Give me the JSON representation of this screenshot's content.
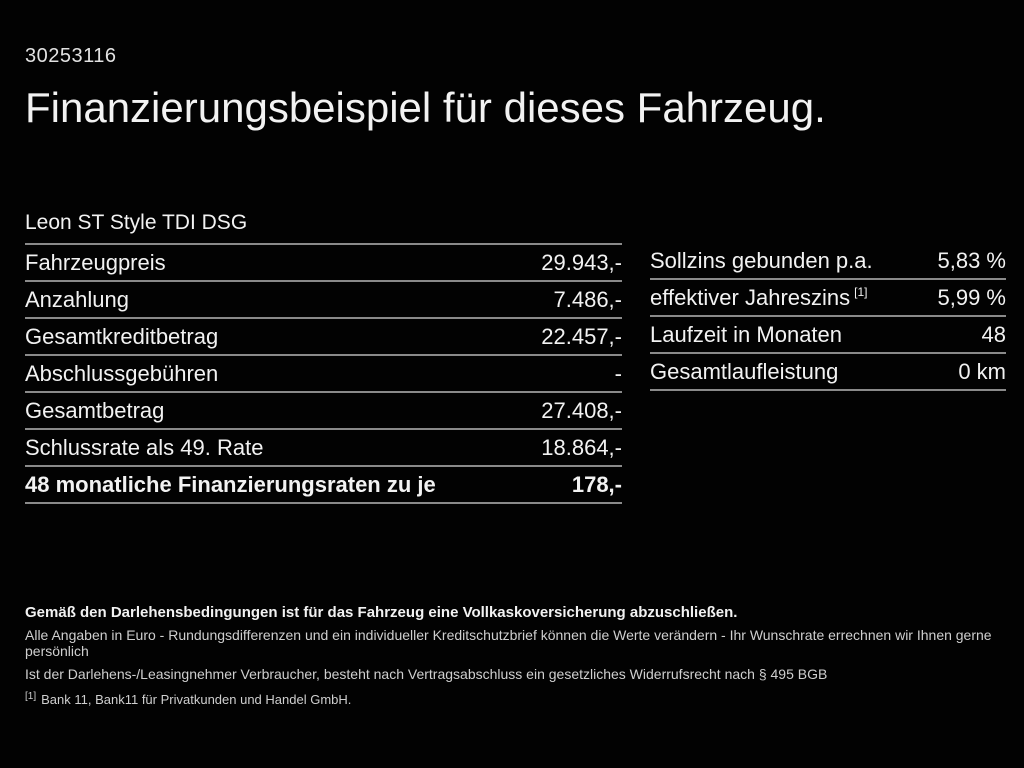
{
  "page": {
    "id_number": "30253116",
    "title": "Finanzierungsbeispiel für dieses Fahrzeug.",
    "vehicle_name": "Leon ST Style TDI DSG"
  },
  "finance_table": {
    "rows": [
      {
        "label": "Fahrzeugpreis",
        "value": "29.943,-",
        "bold": false
      },
      {
        "label": "Anzahlung",
        "value": "7.486,-",
        "bold": false
      },
      {
        "label": "Gesamtkreditbetrag",
        "value": "22.457,-",
        "bold": false
      },
      {
        "label": "Abschlussgebühren",
        "value": "-",
        "bold": false
      },
      {
        "label": "Gesamtbetrag",
        "value": "27.408,-",
        "bold": false
      },
      {
        "label": "Schlussrate als 49. Rate",
        "value": "18.864,-",
        "bold": false
      },
      {
        "label": "48 monatliche Finanzierungsraten zu je",
        "value": "178,-",
        "bold": true
      }
    ]
  },
  "conditions_table": {
    "rows": [
      {
        "label": "Sollzins gebunden p.a.",
        "value": "5,83 %",
        "bold": false
      },
      {
        "label": "effektiver Jahreszins",
        "footnote": "[1]",
        "value": "5,99 %",
        "bold": false
      },
      {
        "label": "Laufzeit in Monaten",
        "value": "48",
        "bold": false
      },
      {
        "label": "Gesamtlaufleistung",
        "value": "0 km",
        "bold": false
      }
    ]
  },
  "footer": {
    "bold_note": "Gemäß den Darlehensbedingungen ist für das Fahrzeug eine Vollkaskoversicherung abzuschließen.",
    "note_line1": "Alle Angaben in Euro - Rundungsdifferenzen und ein individueller Kreditschutzbrief können die Werte verändern - Ihr Wunschrate errechnen wir Ihnen gerne persönlich",
    "note_line2": "Ist der Darlehens-/Leasingnehmer Verbraucher, besteht nach Vertragsabschluss ein gesetzliches Widerrufsrecht nach § 495 BGB",
    "footnote_marker": "[1]",
    "footnote_text": "Bank 11, Bank11 für Privatkunden und Handel GmbH."
  },
  "colors": {
    "background": "#020202",
    "text": "#f2f2f2",
    "muted_text": "#e2e2e2",
    "footer_muted_text": "#cfcfcf",
    "divider": "#8a8a8a"
  }
}
